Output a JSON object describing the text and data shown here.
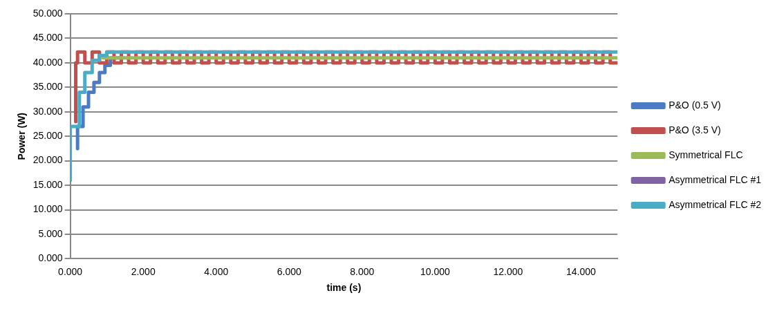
{
  "chart_data": {
    "type": "step",
    "xlabel": "time (s)",
    "ylabel": "Power (W)",
    "xlim": [
      0,
      15
    ],
    "ylim": [
      0,
      50
    ],
    "xticks": [
      {
        "value": 0,
        "label": "0.000"
      },
      {
        "value": 2,
        "label": "2.000"
      },
      {
        "value": 4,
        "label": "4.000"
      },
      {
        "value": 6,
        "label": "6.000"
      },
      {
        "value": 8,
        "label": "8.000"
      },
      {
        "value": 10,
        "label": "10.000"
      },
      {
        "value": 12,
        "label": "12.000"
      },
      {
        "value": 14,
        "label": "14.000"
      }
    ],
    "yticks": [
      {
        "value": 0,
        "label": "0.000"
      },
      {
        "value": 5,
        "label": "5.000"
      },
      {
        "value": 10,
        "label": "10.000"
      },
      {
        "value": 15,
        "label": "15.000"
      },
      {
        "value": 20,
        "label": "20.000"
      },
      {
        "value": 25,
        "label": "25.000"
      },
      {
        "value": 30,
        "label": "30.000"
      },
      {
        "value": 35,
        "label": "35.000"
      },
      {
        "value": 40,
        "label": "40.000"
      },
      {
        "value": 45,
        "label": "45.000"
      },
      {
        "value": 50,
        "label": "50.000"
      }
    ],
    "grid": "y",
    "legend": "right",
    "marker": "none",
    "line_style": "solid",
    "series": [
      {
        "name": "P&O (0.5 V)",
        "color": "#4a7bc4",
        "x": [
          0.2,
          0.35,
          0.5,
          0.65,
          0.8,
          0.95,
          1.1,
          1.25,
          1.45
        ],
        "values": [
          22.5,
          27,
          31,
          34,
          36,
          38,
          39.5,
          41,
          41
        ]
      },
      {
        "name": "P&O (3.5 V)",
        "color": "#c0504d",
        "x": [
          0.15,
          0.2,
          0.4,
          0.6,
          0.8,
          1.0,
          1.2,
          1.4,
          1.6,
          1.8,
          2.0,
          2.2,
          2.4,
          2.6,
          2.8,
          3.0,
          3.2,
          3.4,
          3.6,
          3.8,
          4.0,
          4.2,
          4.4,
          4.6,
          4.8,
          5.0,
          5.2,
          5.4,
          5.6,
          5.8,
          6.0,
          6.2,
          6.4,
          6.6,
          6.8,
          7.0,
          7.2,
          7.4,
          7.6,
          7.8,
          8.0,
          8.2,
          8.4,
          8.6,
          8.8,
          9.0,
          9.2,
          9.4,
          9.6,
          9.8,
          10.0,
          10.2,
          10.4,
          10.6,
          10.8,
          11.0,
          11.2,
          11.4,
          11.6,
          11.8,
          12.0,
          12.2,
          12.4,
          12.6,
          12.8,
          13.0,
          13.2,
          13.4,
          13.6,
          13.8,
          14.0,
          14.2,
          14.4,
          14.6,
          14.8,
          15.0
        ],
        "values": [
          28,
          40,
          42.2,
          40,
          42.2,
          40,
          42.2,
          40,
          42.2,
          40,
          42.2,
          40,
          42.2,
          40,
          42.2,
          40,
          42.2,
          40,
          42.2,
          40,
          42.2,
          40,
          42.2,
          40,
          42.2,
          40,
          42.2,
          40,
          42.2,
          40,
          42.2,
          40,
          42.2,
          40,
          42.2,
          40,
          42.2,
          40,
          42.2,
          40,
          42.2,
          40,
          42.2,
          40,
          42.2,
          40,
          42.2,
          40,
          42.2,
          40,
          42.2,
          40,
          42.2,
          40,
          42.2,
          40,
          42.2,
          40,
          42.2,
          40,
          42.2,
          40,
          42.2,
          40,
          42.2,
          40,
          42.2,
          40,
          42.2,
          40,
          42.2,
          40,
          42.2,
          40,
          42.2,
          40
        ]
      },
      {
        "name": "Symmetrical FLC",
        "color": "#9bbb59",
        "x": [
          0.9,
          15
        ],
        "values": [
          41,
          41
        ]
      },
      {
        "name": "Asymmetrical FLC #1",
        "color": "#8064a2"
      },
      {
        "name": "Asymmetrical FLC #2",
        "color": "#4bacc6",
        "x": [
          0,
          0.25,
          0.4,
          0.6,
          0.8,
          1.0,
          1.2,
          15
        ],
        "values": [
          16,
          27,
          34,
          38,
          40.5,
          41.5,
          42.2,
          42.2
        ]
      }
    ]
  }
}
